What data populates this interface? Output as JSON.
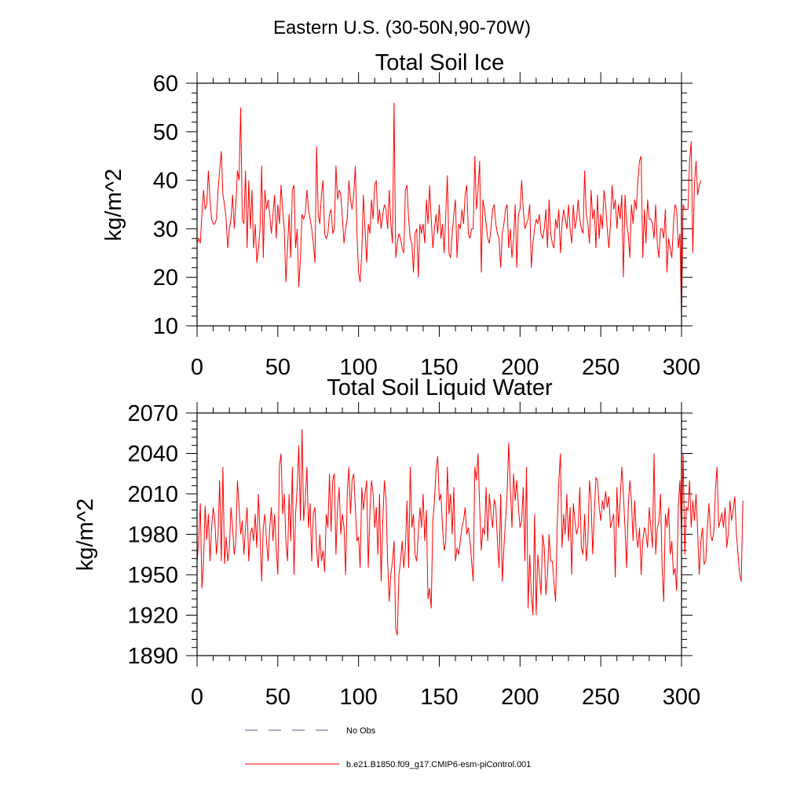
{
  "figure": {
    "suptitle": "Eastern U.S. (30-50N,90-70W)"
  },
  "legend": {
    "entries": [
      {
        "label": "No Obs",
        "color": "#5a5a8c",
        "dash": true
      },
      {
        "label": "b.e21.B1850.f09_g17.CMIP6-esm-piControl.001",
        "color": "#ff0000",
        "dash": false
      }
    ]
  },
  "chart_data": [
    {
      "type": "line",
      "title": "Total Soil Ice",
      "xlabel": "",
      "ylabel": "kg/m^2",
      "xlim": [
        0,
        300
      ],
      "ylim": [
        10,
        60
      ],
      "xticks": [
        0,
        50,
        100,
        150,
        200,
        250,
        300
      ],
      "yticks": [
        10,
        20,
        30,
        40,
        50,
        60
      ],
      "grid": false,
      "series": [
        {
          "name": "b.e21.B1850.f09_g17.CMIP6-esm-piControl.001",
          "color": "#ff0000",
          "x_start": 0,
          "x_step": 1,
          "values": [
            27,
            28,
            27,
            33,
            38,
            34,
            35,
            42,
            36,
            32,
            31,
            31,
            32,
            38,
            42,
            46,
            37,
            35,
            32,
            26,
            30,
            32,
            37,
            30,
            35,
            42,
            40,
            55,
            32,
            31,
            42,
            26,
            40,
            30,
            38,
            26,
            31,
            23,
            26,
            30,
            43,
            24,
            38,
            34,
            36,
            33,
            29,
            33,
            37,
            28,
            35,
            31,
            39,
            34,
            30,
            19,
            26,
            33,
            24,
            38,
            39,
            26,
            30,
            18,
            24,
            33,
            32,
            33,
            38,
            34,
            32,
            30,
            27,
            23,
            47,
            33,
            31,
            37,
            40,
            29,
            28,
            29,
            33,
            34,
            29,
            30,
            43,
            36,
            38,
            37,
            32,
            27,
            30,
            32,
            40,
            36,
            34,
            37,
            43,
            29,
            21,
            19,
            25,
            37,
            30,
            23,
            31,
            29,
            36,
            32,
            39,
            40,
            31,
            34,
            30,
            33,
            35,
            34,
            30,
            38,
            31,
            27,
            56,
            24,
            27,
            29,
            28,
            26,
            25,
            38,
            39,
            32,
            28,
            27,
            21,
            29,
            30,
            20,
            31,
            29,
            31,
            27,
            36,
            31,
            39,
            32,
            26,
            30,
            33,
            29,
            35,
            28,
            31,
            25,
            33,
            41,
            25,
            24,
            29,
            33,
            36,
            24,
            31,
            30,
            34,
            31,
            37,
            39,
            29,
            28,
            30,
            30,
            45,
            34,
            38,
            44,
            21,
            36,
            34,
            31,
            28,
            27,
            30,
            34,
            35,
            31,
            29,
            28,
            22,
            29,
            31,
            34,
            35,
            26,
            30,
            24,
            28,
            35,
            22,
            33,
            34,
            40,
            34,
            30,
            31,
            32,
            35,
            22,
            27,
            30,
            32,
            31,
            33,
            29,
            28,
            30,
            34,
            26,
            36,
            29,
            27,
            26,
            32,
            30,
            34,
            25,
            31,
            34,
            32,
            30,
            35,
            30,
            27,
            35,
            30,
            32,
            36,
            32,
            30,
            29,
            42,
            33,
            31,
            27,
            38,
            32,
            34,
            26,
            37,
            28,
            33,
            30,
            38,
            35,
            30,
            26,
            31,
            39,
            34,
            36,
            30,
            35,
            32,
            37,
            20,
            37,
            31,
            29,
            24,
            35,
            31,
            36,
            34,
            40,
            44,
            45,
            24,
            34,
            27,
            36,
            32,
            32,
            31,
            28,
            35,
            27,
            24,
            30,
            30,
            28,
            34,
            21,
            28,
            26,
            24,
            31,
            35,
            34,
            26,
            29,
            12,
            35,
            34,
            34,
            34,
            44,
            48,
            25,
            39,
            44,
            37,
            39,
            40
          ]
        }
      ]
    },
    {
      "type": "line",
      "title": "Total Soil Liquid Water",
      "xlabel": "",
      "ylabel": "kg/m^2",
      "xlim": [
        0,
        300
      ],
      "ylim": [
        1890,
        2070
      ],
      "xticks": [
        0,
        50,
        100,
        150,
        200,
        250,
        300
      ],
      "yticks": [
        1890,
        1920,
        1950,
        1980,
        2010,
        2040,
        2070
      ],
      "grid": false,
      "series": [
        {
          "name": "b.e21.B1850.f09_g17.CMIP6-esm-piControl.001",
          "color": "#ff0000",
          "x_start": 0,
          "x_step": 1,
          "values": [
            1960,
            1975,
            2003,
            1940,
            1960,
            2001,
            1976,
            1995,
            1960,
            1985,
            2000,
            1990,
            1965,
            1980,
            2020,
            1960,
            2030,
            1958,
            1978,
            1960,
            1970,
            2000,
            1985,
            1965,
            1975,
            2020,
            2000,
            1980,
            1990,
            1965,
            1985,
            2000,
            1960,
            1980,
            1985,
            1975,
            1995,
            1970,
            2010,
            1980,
            1945,
            1985,
            1995,
            1975,
            1960,
            1985,
            2000,
            1975,
            1995,
            1970,
            1950,
            2030,
            2040,
            1995,
            2010,
            1975,
            1960,
            2010,
            1975,
            2030,
            1950,
            1995,
            2015,
            2046,
            1990,
            2058,
            1990,
            2005,
            2030,
            1985,
            2003,
            1960,
            1995,
            2000,
            1970,
            1955,
            1980,
            1960,
            1968,
            1952,
            1995,
            1985,
            2025,
            1982,
            2020,
            2025,
            1965,
            2000,
            2015,
            1980,
            1995,
            1985,
            1950,
            2010,
            2030,
            1995,
            2020,
            2025,
            2000,
            1975,
            1978,
            1955,
            2015,
            1998,
            2010,
            2020,
            1955,
            1995,
            2020,
            2010,
            1985,
            2000,
            1965,
            2010,
            1945,
            1990,
            2020,
            2006,
            1960,
            1930,
            1950,
            1960,
            1975,
            1910,
            1905,
            1950,
            1960,
            1975,
            1955,
            1970,
            2005,
            1955,
            2030,
            1985,
            1995,
            1965,
            1960,
            1980,
            2000,
            1985,
            2010,
            1975,
            1998,
            1932,
            1940,
            1925,
            1990,
            2005,
            2028,
            2038,
            2005,
            2010,
            1985,
            1968,
            1975,
            2030,
            1995,
            2010,
            1980,
            2015,
            1960,
            1970,
            1965,
            1975,
            1985,
            1990,
            2000,
            1980,
            1985,
            1975,
            1960,
            1945,
            2030,
            2020,
            2040,
            2000,
            1968,
            1985,
            1980,
            2015,
            1975,
            2010,
            1995,
            1985,
            2006,
            2000,
            1975,
            1955,
            2010,
            1945,
            1970,
            1990,
            2010,
            2048,
            2015,
            1985,
            2025,
            2005,
            2020,
            2000,
            1985,
            1990,
            2015,
            1960,
            2030,
            1925,
            1965,
            1935,
            1920,
            1995,
            1920,
            1965,
            1950,
            1935,
            1980,
            1970,
            1935,
            1950,
            1980,
            1960,
            1960,
            1945,
            1930,
            1985,
            2018,
            2040,
            1970,
            1995,
            1980,
            2010,
            1975,
            2000,
            1950,
            2003,
            1990,
            1980,
            1985,
            2015,
            1970,
            1965,
            1995,
            1960,
            1975,
            2020,
            2005,
            1965,
            1995,
            2022,
            2020,
            2000,
            1990,
            2005,
            1998,
            2012,
            2000,
            2008,
            1985,
            1990,
            1995,
            1948,
            2015,
            1985,
            2005,
            2030,
            2010,
            1985,
            1955,
            2000,
            2020,
            2005,
            1975,
            2005,
            1980,
            1970,
            1985,
            1950,
            1975,
            1985,
            1980,
            1970,
            2000,
            1985,
            1970,
            2040,
            1965,
            1985,
            1990,
            2010,
            1955,
            1930,
            1995,
            1985,
            2000,
            1965,
            1975,
            1950,
            1955,
            1938,
            2000,
            2020,
            1980,
            2040,
            1965,
            2000,
            1998,
            2020,
            1985,
            2005,
            1990,
            2010,
            1982,
            1950,
            1975,
            1985,
            1958,
            1960,
            1985,
            2003,
            1980,
            1975,
            1982,
            2013,
            2030,
            1985,
            1990,
            1996,
            1985,
            2000,
            1970,
            1980,
            2005,
            1990,
            1998,
            2008,
            1980,
            1965,
            1950,
            1945,
            2005
          ]
        }
      ]
    }
  ]
}
